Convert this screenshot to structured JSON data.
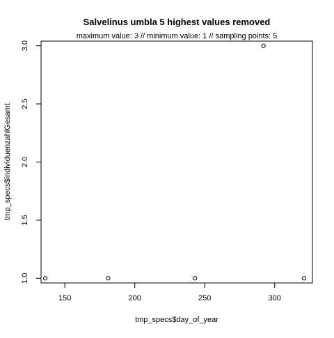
{
  "chart_data": {
    "type": "scatter",
    "title": "Salvelinus umbla  5 highest values removed",
    "subtitle": "maximum value: 3  //  minimum value: 1  // sampling points: 5",
    "xlabel": "tmp_specs$day_of_year",
    "ylabel": "tmp_specs$individuenzahlGesamt",
    "xlim": [
      133,
      327
    ],
    "ylim": [
      0.96,
      3.04
    ],
    "x_ticks": [
      150,
      200,
      250,
      300
    ],
    "y_ticks": [
      1.0,
      1.5,
      2.0,
      2.5,
      3.0
    ],
    "x_tick_labels": [
      "150",
      "200",
      "250",
      "300"
    ],
    "y_tick_labels": [
      "1.0",
      "1.5",
      "2.0",
      "2.5",
      "3.0"
    ],
    "grid": false,
    "legend": "none",
    "point_style": "open-circle",
    "point_color": "#000000",
    "points": [
      {
        "x": 136,
        "y": 1
      },
      {
        "x": 181,
        "y": 1
      },
      {
        "x": 243,
        "y": 1
      },
      {
        "x": 292,
        "y": 3
      },
      {
        "x": 321,
        "y": 1
      }
    ]
  }
}
